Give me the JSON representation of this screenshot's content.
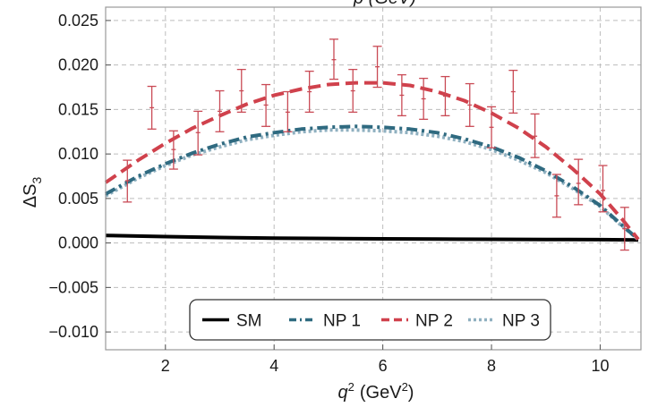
{
  "chart_data": {
    "type": "line",
    "title_fragment": "p (GeV)",
    "xlabel_var": "q",
    "xlabel_sup": "2",
    "xlabel_unit": "(GeV",
    "xlabel_unit_sup": "2",
    "xlabel_close": ")",
    "ylabel_main": "ΔS",
    "ylabel_sub": "3",
    "xlim": [
      0.9,
      10.75
    ],
    "ylim": [
      -0.012,
      0.0265
    ],
    "x_ticks": [
      2,
      4,
      6,
      8,
      10
    ],
    "x_tick_labels": [
      "2",
      "4",
      "6",
      "8",
      "10"
    ],
    "y_ticks": [
      -0.01,
      -0.005,
      0.0,
      0.005,
      0.01,
      0.015,
      0.02,
      0.025
    ],
    "y_tick_labels": [
      "−0.010",
      "−0.005",
      "0.000",
      "0.005",
      "0.010",
      "0.015",
      "0.020",
      "0.025"
    ],
    "grid": true,
    "legend_position": "bottom-center",
    "series": [
      {
        "name": "SM",
        "color": "#000000",
        "style": "solid",
        "x": [
          0.9,
          2.0,
          3.0,
          4.0,
          5.0,
          6.0,
          7.0,
          8.0,
          9.0,
          10.0,
          10.7
        ],
        "y": [
          0.00085,
          0.00072,
          0.00062,
          0.00055,
          0.0005,
          0.00046,
          0.00043,
          0.00041,
          0.00039,
          0.00037,
          0.00034
        ]
      },
      {
        "name": "NP 1",
        "color": "#2f6a80",
        "style": "dashdot",
        "x": [
          0.9,
          1.5,
          2.0,
          2.5,
          3.0,
          3.5,
          4.0,
          4.5,
          5.0,
          5.5,
          6.0,
          6.5,
          7.0,
          7.5,
          8.0,
          8.5,
          9.0,
          9.5,
          10.0,
          10.4,
          10.7
        ],
        "y": [
          0.0055,
          0.0075,
          0.0089,
          0.0101,
          0.0111,
          0.0119,
          0.0124,
          0.0128,
          0.013,
          0.0131,
          0.013,
          0.0128,
          0.0124,
          0.0117,
          0.0108,
          0.0096,
          0.0081,
          0.0063,
          0.0042,
          0.002,
          0.0004
        ]
      },
      {
        "name": "NP 2",
        "color": "#d0414c",
        "style": "dashed",
        "x": [
          0.9,
          1.5,
          2.0,
          2.5,
          3.0,
          3.5,
          4.0,
          4.5,
          5.0,
          5.5,
          6.0,
          6.5,
          7.0,
          7.5,
          8.0,
          8.5,
          9.0,
          9.5,
          10.0,
          10.4,
          10.7
        ],
        "y": [
          0.0068,
          0.0093,
          0.0112,
          0.0129,
          0.0143,
          0.0156,
          0.0166,
          0.0173,
          0.0178,
          0.018,
          0.018,
          0.0177,
          0.017,
          0.016,
          0.0146,
          0.0129,
          0.0108,
          0.0083,
          0.0055,
          0.0027,
          0.0004
        ]
      },
      {
        "name": "NP 3",
        "color": "#8fb0c0",
        "style": "dotted",
        "x": [
          0.9,
          1.5,
          2.0,
          2.5,
          3.0,
          3.5,
          4.0,
          4.5,
          5.0,
          5.5,
          6.0,
          6.5,
          7.0,
          7.5,
          8.0,
          8.5,
          9.0,
          9.5,
          10.0,
          10.4,
          10.7
        ],
        "y": [
          0.0053,
          0.0073,
          0.0087,
          0.0099,
          0.0108,
          0.0116,
          0.0121,
          0.0125,
          0.0127,
          0.0127,
          0.0126,
          0.0124,
          0.012,
          0.0114,
          0.0105,
          0.0093,
          0.0079,
          0.0061,
          0.0041,
          0.0019,
          0.0004
        ]
      }
    ],
    "error_bars": {
      "color": "#c94a55",
      "points": [
        {
          "x": 1.3,
          "y": 0.007,
          "lo": 0.0046,
          "hi": 0.0093
        },
        {
          "x": 1.75,
          "y": 0.0152,
          "lo": 0.0128,
          "hi": 0.0176
        },
        {
          "x": 2.15,
          "y": 0.0105,
          "lo": 0.0083,
          "hi": 0.0126
        },
        {
          "x": 2.6,
          "y": 0.0124,
          "lo": 0.0099,
          "hi": 0.0148
        },
        {
          "x": 3.0,
          "y": 0.0148,
          "lo": 0.0125,
          "hi": 0.0171
        },
        {
          "x": 3.4,
          "y": 0.0171,
          "lo": 0.0147,
          "hi": 0.0195
        },
        {
          "x": 3.85,
          "y": 0.0155,
          "lo": 0.0131,
          "hi": 0.0178
        },
        {
          "x": 4.25,
          "y": 0.0147,
          "lo": 0.0125,
          "hi": 0.017
        },
        {
          "x": 4.65,
          "y": 0.017,
          "lo": 0.0147,
          "hi": 0.0193
        },
        {
          "x": 5.1,
          "y": 0.0206,
          "lo": 0.0184,
          "hi": 0.0229
        },
        {
          "x": 5.45,
          "y": 0.0171,
          "lo": 0.0147,
          "hi": 0.0195
        },
        {
          "x": 5.9,
          "y": 0.0198,
          "lo": 0.0175,
          "hi": 0.0221
        },
        {
          "x": 6.35,
          "y": 0.0166,
          "lo": 0.0143,
          "hi": 0.0189
        },
        {
          "x": 6.75,
          "y": 0.0162,
          "lo": 0.0139,
          "hi": 0.0185
        },
        {
          "x": 7.15,
          "y": 0.0165,
          "lo": 0.0143,
          "hi": 0.0187
        },
        {
          "x": 7.6,
          "y": 0.0155,
          "lo": 0.0131,
          "hi": 0.0179
        },
        {
          "x": 8.0,
          "y": 0.013,
          "lo": 0.0107,
          "hi": 0.0153
        },
        {
          "x": 8.4,
          "y": 0.017,
          "lo": 0.0146,
          "hi": 0.0194
        },
        {
          "x": 8.8,
          "y": 0.012,
          "lo": 0.0096,
          "hi": 0.0145
        },
        {
          "x": 9.2,
          "y": 0.0053,
          "lo": 0.0029,
          "hi": 0.0077
        },
        {
          "x": 9.6,
          "y": 0.0067,
          "lo": 0.0043,
          "hi": 0.0094
        },
        {
          "x": 10.05,
          "y": 0.0059,
          "lo": 0.0035,
          "hi": 0.0087
        },
        {
          "x": 10.45,
          "y": 0.0016,
          "lo": -0.0008,
          "hi": 0.004
        }
      ]
    }
  }
}
